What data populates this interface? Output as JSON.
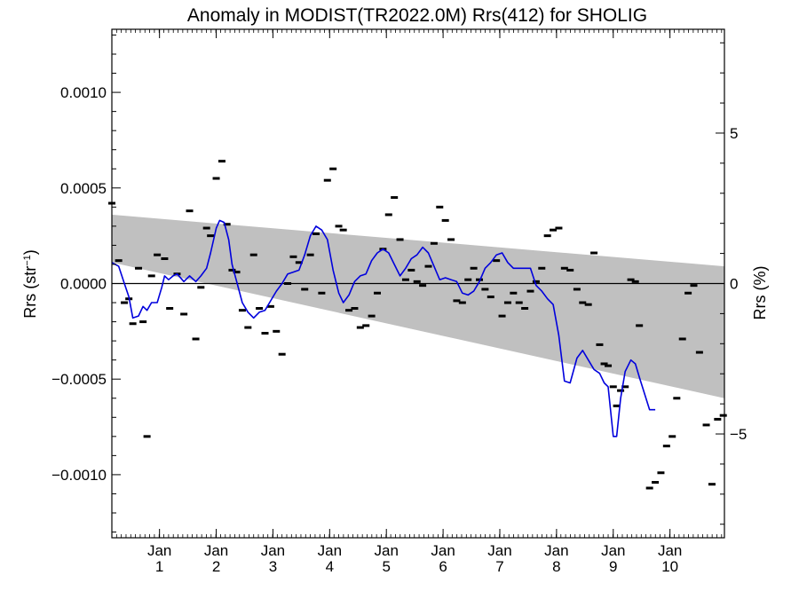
{
  "chart_data": {
    "type": "line",
    "title": "Anomaly in MODIST(TR2022.0M) Rrs(412) for SHOLIG",
    "ylabel_left": {
      "base": "Rrs (str",
      "sup": "−1",
      "close": ")"
    },
    "ylabel_right": "Rrs (%)",
    "xlabel": "",
    "xlim": [
      0,
      10.8
    ],
    "ylim": [
      -0.00133,
      0.00133
    ],
    "ylim_right": [
      -8.45,
      8.45
    ],
    "grid": false,
    "y_ticks_left": [
      {
        "value": 0.001,
        "label": "0.0010"
      },
      {
        "value": 0.0005,
        "label": "0.0005"
      },
      {
        "value": 0.0,
        "label": "0.0000"
      },
      {
        "value": -0.0005,
        "label": "−0.0005"
      },
      {
        "value": -0.001,
        "label": "−0.0010"
      }
    ],
    "y_ticks_right": [
      {
        "value": 5,
        "label": "5"
      },
      {
        "value": 0,
        "label": "0"
      },
      {
        "value": -5,
        "label": "−5"
      }
    ],
    "x_ticks": [
      {
        "value": 0.84,
        "month": "Jan",
        "year": "1"
      },
      {
        "value": 1.84,
        "month": "Jan",
        "year": "2"
      },
      {
        "value": 2.84,
        "month": "Jan",
        "year": "3"
      },
      {
        "value": 3.84,
        "month": "Jan",
        "year": "4"
      },
      {
        "value": 4.84,
        "month": "Jan",
        "year": "5"
      },
      {
        "value": 5.84,
        "month": "Jan",
        "year": "6"
      },
      {
        "value": 6.84,
        "month": "Jan",
        "year": "7"
      },
      {
        "value": 7.84,
        "month": "Jan",
        "year": "8"
      },
      {
        "value": 8.84,
        "month": "Jan",
        "year": "9"
      },
      {
        "value": 9.84,
        "month": "Jan",
        "year": "10"
      }
    ],
    "band": {
      "upper": [
        [
          0,
          0.00036
        ],
        [
          10.8,
          9e-05
        ]
      ],
      "lower": [
        [
          0,
          0.00011
        ],
        [
          10.8,
          -0.0006
        ]
      ]
    },
    "zero_line": 0,
    "scatter_points": [
      [
        0.0,
        0.00042
      ],
      [
        0.12,
        0.00012
      ],
      [
        0.22,
        -0.0001
      ],
      [
        0.3,
        -8e-05
      ],
      [
        0.37,
        -0.00021
      ],
      [
        0.47,
        8e-05
      ],
      [
        0.55,
        -0.0002
      ],
      [
        0.62,
        -0.0008
      ],
      [
        0.7,
        4e-05
      ],
      [
        0.8,
        0.00015
      ],
      [
        0.93,
        0.00013
      ],
      [
        1.02,
        -0.00013
      ],
      [
        1.15,
        5e-05
      ],
      [
        1.27,
        -0.00016
      ],
      [
        1.37,
        0.00038
      ],
      [
        1.48,
        -0.00029
      ],
      [
        1.57,
        -2e-05
      ],
      [
        1.67,
        0.00029
      ],
      [
        1.74,
        0.00025
      ],
      [
        1.84,
        0.00055
      ],
      [
        1.94,
        0.00064
      ],
      [
        2.03,
        0.00031
      ],
      [
        2.12,
        7e-05
      ],
      [
        2.2,
        6e-05
      ],
      [
        2.3,
        -0.00014
      ],
      [
        2.4,
        -0.00023
      ],
      [
        2.5,
        0.00015
      ],
      [
        2.6,
        -0.00013
      ],
      [
        2.7,
        -0.00026
      ],
      [
        2.8,
        -0.00012
      ],
      [
        2.9,
        -0.00025
      ],
      [
        3.0,
        -0.00037
      ],
      [
        3.1,
        0.0
      ],
      [
        3.2,
        0.00014
      ],
      [
        3.3,
        0.00011
      ],
      [
        3.4,
        -3e-05
      ],
      [
        3.5,
        0.00015
      ],
      [
        3.6,
        0.00026
      ],
      [
        3.7,
        -5e-05
      ],
      [
        3.8,
        0.00054
      ],
      [
        3.9,
        0.0006
      ],
      [
        4.0,
        0.0003
      ],
      [
        4.08,
        0.00028
      ],
      [
        4.18,
        -0.00014
      ],
      [
        4.28,
        -0.00013
      ],
      [
        4.38,
        -0.00023
      ],
      [
        4.48,
        -0.00022
      ],
      [
        4.58,
        -0.00017
      ],
      [
        4.68,
        -5e-05
      ],
      [
        4.78,
        0.00018
      ],
      [
        4.88,
        0.00036
      ],
      [
        4.98,
        0.00045
      ],
      [
        5.08,
        0.00023
      ],
      [
        5.18,
        2e-05
      ],
      [
        5.28,
        7e-05
      ],
      [
        5.38,
        1e-05
      ],
      [
        5.48,
        -1e-05
      ],
      [
        5.58,
        9e-05
      ],
      [
        5.68,
        0.00021
      ],
      [
        5.78,
        0.0004
      ],
      [
        5.88,
        0.00033
      ],
      [
        5.98,
        0.00023
      ],
      [
        6.08,
        -9e-05
      ],
      [
        6.18,
        -0.0001
      ],
      [
        6.28,
        2e-05
      ],
      [
        6.38,
        8e-05
      ],
      [
        6.48,
        2e-05
      ],
      [
        6.58,
        -3e-05
      ],
      [
        6.68,
        -7e-05
      ],
      [
        6.78,
        0.00012
      ],
      [
        6.88,
        -0.00017
      ],
      [
        6.98,
        -0.0001
      ],
      [
        7.08,
        -5e-05
      ],
      [
        7.18,
        -0.0001
      ],
      [
        7.28,
        -0.00013
      ],
      [
        7.38,
        -4e-05
      ],
      [
        7.48,
        1e-05
      ],
      [
        7.58,
        8e-05
      ],
      [
        7.68,
        0.00025
      ],
      [
        7.78,
        0.00028
      ],
      [
        7.88,
        0.00029
      ],
      [
        7.98,
        8e-05
      ],
      [
        8.08,
        7e-05
      ],
      [
        8.2,
        -3e-05
      ],
      [
        8.3,
        -0.0001
      ],
      [
        8.4,
        -0.00011
      ],
      [
        8.5,
        0.00016
      ],
      [
        8.6,
        -0.00032
      ],
      [
        8.68,
        -0.00042
      ],
      [
        8.75,
        -0.00043
      ],
      [
        8.84,
        -0.00054
      ],
      [
        8.9,
        -0.00064
      ],
      [
        8.97,
        -0.00056
      ],
      [
        9.05,
        -0.00054
      ],
      [
        9.15,
        2e-05
      ],
      [
        9.23,
        1e-05
      ],
      [
        9.3,
        -0.00022
      ],
      [
        9.48,
        -0.00107
      ],
      [
        9.58,
        -0.00104
      ],
      [
        9.68,
        -0.00099
      ],
      [
        9.78,
        -0.00085
      ],
      [
        9.88,
        -0.0008
      ],
      [
        9.96,
        -0.0006
      ],
      [
        10.06,
        -0.00029
      ],
      [
        10.16,
        -5e-05
      ],
      [
        10.26,
        -1e-05
      ],
      [
        10.36,
        -0.00036
      ],
      [
        10.48,
        -0.00074
      ],
      [
        10.58,
        -0.00105
      ],
      [
        10.68,
        -0.00071
      ],
      [
        10.78,
        -0.00069
      ]
    ],
    "series": [
      {
        "color": "#0000dd",
        "points": [
          [
            0.0,
            0.00011
          ],
          [
            0.12,
            9e-05
          ],
          [
            0.22,
            0.0
          ],
          [
            0.3,
            -7e-05
          ],
          [
            0.37,
            -0.00018
          ],
          [
            0.47,
            -0.00017
          ],
          [
            0.55,
            -0.00012
          ],
          [
            0.62,
            -0.00014
          ],
          [
            0.7,
            -0.0001
          ],
          [
            0.8,
            -0.0001
          ],
          [
            0.88,
            -2e-05
          ],
          [
            0.93,
            4e-05
          ],
          [
            1.0,
            2e-05
          ],
          [
            1.08,
            4e-05
          ],
          [
            1.15,
            5e-05
          ],
          [
            1.27,
            1e-05
          ],
          [
            1.37,
            4e-05
          ],
          [
            1.48,
            1e-05
          ],
          [
            1.57,
            4e-05
          ],
          [
            1.67,
            8e-05
          ],
          [
            1.74,
            0.00016
          ],
          [
            1.84,
            0.00029
          ],
          [
            1.9,
            0.00033
          ],
          [
            1.98,
            0.00032
          ],
          [
            2.06,
            0.00023
          ],
          [
            2.12,
            0.0001
          ],
          [
            2.2,
            1e-05
          ],
          [
            2.3,
            -0.0001
          ],
          [
            2.4,
            -0.00015
          ],
          [
            2.5,
            -0.00018
          ],
          [
            2.6,
            -0.00015
          ],
          [
            2.7,
            -0.00014
          ],
          [
            2.8,
            -9e-05
          ],
          [
            2.9,
            -4e-05
          ],
          [
            3.0,
            0.0
          ],
          [
            3.1,
            5e-05
          ],
          [
            3.2,
            6e-05
          ],
          [
            3.3,
            7e-05
          ],
          [
            3.4,
            0.00015
          ],
          [
            3.5,
            0.00025
          ],
          [
            3.6,
            0.0003
          ],
          [
            3.7,
            0.00028
          ],
          [
            3.8,
            0.00023
          ],
          [
            3.9,
            7e-05
          ],
          [
            4.0,
            -5e-05
          ],
          [
            4.08,
            -0.0001
          ],
          [
            4.18,
            -6e-05
          ],
          [
            4.28,
            1e-05
          ],
          [
            4.38,
            4e-05
          ],
          [
            4.48,
            5e-05
          ],
          [
            4.58,
            0.00012
          ],
          [
            4.68,
            0.00016
          ],
          [
            4.78,
            0.00018
          ],
          [
            4.88,
            0.00016
          ],
          [
            4.98,
            0.0001
          ],
          [
            5.08,
            4e-05
          ],
          [
            5.18,
            8e-05
          ],
          [
            5.28,
            0.00013
          ],
          [
            5.38,
            0.00015
          ],
          [
            5.48,
            0.00019
          ],
          [
            5.58,
            0.00016
          ],
          [
            5.68,
            9e-05
          ],
          [
            5.78,
            2e-05
          ],
          [
            5.88,
            3e-05
          ],
          [
            5.98,
            2e-05
          ],
          [
            6.08,
            1e-05
          ],
          [
            6.18,
            -5e-05
          ],
          [
            6.28,
            -6e-05
          ],
          [
            6.38,
            -4e-05
          ],
          [
            6.48,
            1e-05
          ],
          [
            6.58,
            8e-05
          ],
          [
            6.68,
            0.00011
          ],
          [
            6.78,
            0.00015
          ],
          [
            6.88,
            0.00016
          ],
          [
            6.98,
            0.00011
          ],
          [
            7.08,
            8e-05
          ],
          [
            7.18,
            8e-05
          ],
          [
            7.28,
            8e-05
          ],
          [
            7.38,
            8e-05
          ],
          [
            7.48,
            -1e-05
          ],
          [
            7.58,
            -4e-05
          ],
          [
            7.68,
            -8e-05
          ],
          [
            7.78,
            -0.00011
          ],
          [
            7.88,
            -0.00027
          ],
          [
            7.98,
            -0.00051
          ],
          [
            8.08,
            -0.00052
          ],
          [
            8.2,
            -0.00039
          ],
          [
            8.3,
            -0.00035
          ],
          [
            8.4,
            -0.0004
          ],
          [
            8.5,
            -0.00045
          ],
          [
            8.6,
            -0.00047
          ],
          [
            8.68,
            -0.00052
          ],
          [
            8.75,
            -0.00054
          ],
          [
            8.84,
            -0.0008
          ],
          [
            8.9,
            -0.0008
          ],
          [
            8.97,
            -0.0006
          ],
          [
            9.05,
            -0.00046
          ],
          [
            9.15,
            -0.0004
          ],
          [
            9.23,
            -0.00042
          ],
          [
            9.3,
            -0.00049
          ],
          [
            9.48,
            -0.00066
          ],
          [
            9.58,
            -0.00066
          ]
        ]
      }
    ]
  }
}
